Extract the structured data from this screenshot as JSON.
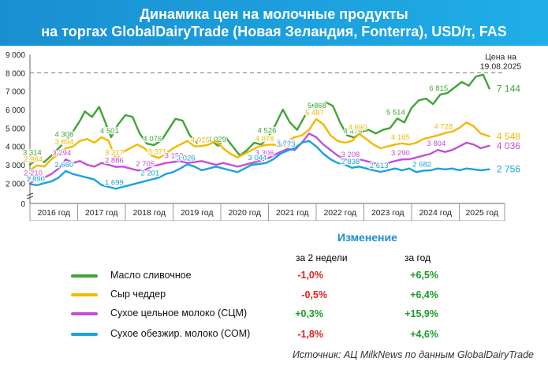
{
  "header": {
    "title_line1": "Динамика цен на молочные продукты",
    "title_line2": "на торгах GlobalDairyTrade (Новая Зеландия, Fonterra), USD/т, FAS"
  },
  "chart_data": {
    "type": "line",
    "ylim": [
      0,
      9000
    ],
    "yticks": [
      "0",
      "2 000",
      "3 000",
      "4 000",
      "5 000",
      "6 000",
      "7 000",
      "8 000",
      "9 000"
    ],
    "xlim": [
      2016.0,
      2025.95
    ],
    "categories": [
      "2016 год",
      "2017 год",
      "2018 год",
      "2019 год",
      "2020 год",
      "2021 год",
      "2022 год",
      "2023 год",
      "2024 год",
      "2025 год"
    ],
    "reference_line": {
      "value": 8000,
      "label_line1": "Цена на",
      "label_line2": "19.08.2025"
    },
    "colors": {
      "butter": "#3fa535",
      "cheddar": "#f5b800",
      "wmp": "#c44fd8",
      "smp": "#1aa3dc"
    },
    "series": [
      {
        "key": "butter",
        "x": [
          2016.0,
          2016.15,
          2016.3,
          2016.45,
          2016.6,
          2016.75,
          2016.9,
          2017.05,
          2017.15,
          2017.3,
          2017.45,
          2017.55,
          2017.7,
          2017.85,
          2018.0,
          2018.15,
          2018.3,
          2018.45,
          2018.6,
          2018.75,
          2018.9,
          2019.05,
          2019.2,
          2019.35,
          2019.5,
          2019.65,
          2019.8,
          2019.95,
          2020.1,
          2020.25,
          2020.4,
          2020.55,
          2020.7,
          2020.85,
          2021.0,
          2021.15,
          2021.3,
          2021.45,
          2021.6,
          2021.75,
          2021.9,
          2022.05,
          2022.2,
          2022.35,
          2022.5,
          2022.65,
          2022.8,
          2022.95,
          2023.1,
          2023.25,
          2023.4,
          2023.55,
          2023.7,
          2023.85,
          2024.0,
          2024.15,
          2024.3,
          2024.45,
          2024.6,
          2024.75,
          2024.9,
          2025.05,
          2025.2,
          2025.35,
          2025.5,
          2025.63
        ],
        "values": [
          3000,
          3314,
          3150,
          3500,
          3900,
          4308,
          4800,
          5400,
          5900,
          5600,
          6150,
          5500,
          4501,
          5200,
          5700,
          5600,
          4700,
          4150,
          4076,
          4300,
          4900,
          5500,
          5400,
          4600,
          4200,
          4500,
          4300,
          4029,
          4500,
          4000,
          3500,
          3800,
          4200,
          4100,
          4526,
          5200,
          6000,
          5300,
          4900,
          5600,
          6300,
          5868,
          6400,
          6200,
          5300,
          4600,
          4479,
          4800,
          4900,
          4700,
          4900,
          5000,
          5514,
          5300,
          6100,
          6500,
          6600,
          6300,
          6815,
          6900,
          7200,
          7500,
          7300,
          7800,
          7900,
          7144
        ],
        "labels": [
          [
            "3 314",
            2016.08,
            3314
          ],
          [
            "4 308",
            2016.75,
            4308
          ],
          [
            "4 501",
            2017.7,
            4501
          ],
          [
            "4 076",
            2018.6,
            4076
          ],
          [
            "4 029",
            2019.95,
            4029
          ],
          [
            "4 526",
            2021.0,
            4526
          ],
          [
            "5 868",
            2022.05,
            5868
          ],
          [
            "4 479",
            2022.8,
            4479
          ],
          [
            "5 514",
            2023.7,
            5514
          ],
          [
            "6 815",
            2024.6,
            6815
          ],
          [
            "7 144",
            2025.75,
            7144
          ]
        ]
      },
      {
        "key": "cheddar",
        "x": [
          2016.0,
          2016.15,
          2016.3,
          2016.45,
          2016.6,
          2016.75,
          2016.9,
          2017.05,
          2017.2,
          2017.35,
          2017.5,
          2017.65,
          2017.8,
          2017.95,
          2018.1,
          2018.25,
          2018.4,
          2018.55,
          2018.7,
          2018.85,
          2019.0,
          2019.15,
          2019.3,
          2019.45,
          2019.6,
          2019.75,
          2019.9,
          2020.05,
          2020.2,
          2020.35,
          2020.5,
          2020.65,
          2020.8,
          2020.95,
          2021.1,
          2021.25,
          2021.4,
          2021.55,
          2021.7,
          2021.85,
          2022.0,
          2022.15,
          2022.3,
          2022.45,
          2022.6,
          2022.75,
          2022.9,
          2023.05,
          2023.2,
          2023.35,
          2023.5,
          2023.65,
          2023.8,
          2023.95,
          2024.1,
          2024.25,
          2024.4,
          2024.55,
          2024.7,
          2024.85,
          2025.0,
          2025.15,
          2025.3,
          2025.45,
          2025.63
        ],
        "values": [
          2700,
          2964,
          2900,
          3300,
          3600,
          3894,
          4000,
          4300,
          4400,
          4200,
          4500,
          4300,
          3317,
          3700,
          3900,
          4100,
          3900,
          3500,
          3371,
          3600,
          3900,
          4100,
          4300,
          4000,
          4015,
          4100,
          4300,
          3900,
          3600,
          3400,
          3600,
          3800,
          4000,
          4078,
          4100,
          4000,
          4300,
          4500,
          4600,
          4900,
          5487,
          5200,
          4600,
          4300,
          4200,
          4300,
          4690,
          4400,
          4100,
          3900,
          4000,
          4100,
          4165,
          4100,
          4200,
          4400,
          4500,
          4600,
          4728,
          4800,
          5000,
          5300,
          5100,
          4700,
          4548
        ],
        "labels": [
          [
            "2 964",
            2016.1,
            2964
          ],
          [
            "3 894",
            2016.75,
            3894
          ],
          [
            "3 317",
            2017.8,
            3317
          ],
          [
            "3 371",
            2018.7,
            3371
          ],
          [
            "4 015",
            2019.6,
            4015
          ],
          [
            "4 078",
            2020.95,
            4078
          ],
          [
            "5 487",
            2022.0,
            5487
          ],
          [
            "4 690",
            2022.9,
            4690
          ],
          [
            "4 165",
            2023.8,
            4165
          ],
          [
            "4 728",
            2024.7,
            4728
          ],
          [
            "4 548",
            2025.75,
            4548
          ]
        ]
      },
      {
        "key": "wmp",
        "x": [
          2016.0,
          2016.15,
          2016.3,
          2016.45,
          2016.6,
          2016.75,
          2016.9,
          2017.05,
          2017.2,
          2017.35,
          2017.5,
          2017.65,
          2017.8,
          2017.95,
          2018.1,
          2018.25,
          2018.4,
          2018.55,
          2018.7,
          2018.85,
          2019.0,
          2019.15,
          2019.3,
          2019.45,
          2019.6,
          2019.75,
          2019.9,
          2020.05,
          2020.2,
          2020.35,
          2020.5,
          2020.65,
          2020.8,
          2020.95,
          2021.1,
          2021.25,
          2021.4,
          2021.55,
          2021.7,
          2021.85,
          2022.0,
          2022.15,
          2022.3,
          2022.45,
          2022.6,
          2022.75,
          2022.9,
          2023.05,
          2023.2,
          2023.35,
          2023.5,
          2023.65,
          2023.8,
          2023.95,
          2024.1,
          2024.25,
          2024.4,
          2024.55,
          2024.7,
          2024.85,
          2025.0,
          2025.15,
          2025.3,
          2025.45,
          2025.63
        ],
        "values": [
          2000,
          2210,
          2300,
          2500,
          2800,
          3294,
          3100,
          3200,
          3000,
          2900,
          3100,
          3000,
          2886,
          2900,
          2800,
          2700,
          2705,
          2900,
          3000,
          3100,
          3150,
          3200,
          3100,
          3150,
          3200,
          3100,
          3000,
          3100,
          3000,
          2900,
          3000,
          3100,
          3200,
          3306,
          3500,
          3700,
          3866,
          3800,
          4200,
          4700,
          4500,
          4100,
          3800,
          3500,
          3300,
          3208,
          3300,
          3200,
          3100,
          3000,
          3100,
          3200,
          3290,
          3300,
          3400,
          3500,
          3600,
          3804,
          3700,
          3800,
          4000,
          4200,
          4100,
          3900,
          4036
        ],
        "labels": [
          [
            "2 210",
            2016.1,
            2210
          ],
          [
            "3 294",
            2016.7,
            3294
          ],
          [
            "2 886",
            2017.8,
            2886
          ],
          [
            "2 705",
            2018.45,
            2705
          ],
          [
            "3 150",
            2019.05,
            3150
          ],
          [
            "3 306",
            2020.95,
            3306
          ],
          [
            "3 866",
            2021.4,
            3866
          ],
          [
            "3 208",
            2022.75,
            3208
          ],
          [
            "3 290",
            2023.8,
            3290
          ],
          [
            "3 804",
            2024.55,
            3804
          ],
          [
            "4 036",
            2025.75,
            4036
          ]
        ]
      },
      {
        "key": "smp",
        "x": [
          2016.0,
          2016.15,
          2016.3,
          2016.45,
          2016.6,
          2016.75,
          2016.9,
          2017.05,
          2017.2,
          2017.35,
          2017.5,
          2017.65,
          2017.8,
          2017.95,
          2018.1,
          2018.25,
          2018.4,
          2018.55,
          2018.7,
          2018.85,
          2019.0,
          2019.15,
          2019.3,
          2019.45,
          2019.6,
          2019.75,
          2019.9,
          2020.05,
          2020.2,
          2020.35,
          2020.5,
          2020.65,
          2020.8,
          2020.95,
          2021.1,
          2021.25,
          2021.4,
          2021.55,
          2021.7,
          2021.85,
          2022.0,
          2022.15,
          2022.3,
          2022.45,
          2022.6,
          2022.75,
          2022.9,
          2023.05,
          2023.2,
          2023.35,
          2023.5,
          2023.65,
          2023.8,
          2023.95,
          2024.1,
          2024.25,
          2024.4,
          2024.55,
          2024.7,
          2024.85,
          2025.0,
          2025.15,
          2025.3,
          2025.45,
          2025.63
        ],
        "values": [
          1950,
          1890,
          2000,
          2100,
          2300,
          2660,
          2500,
          2400,
          2300,
          2200,
          1900,
          1800,
          1699,
          1800,
          1900,
          2000,
          2100,
          2201,
          2300,
          2500,
          2600,
          2800,
          3026,
          2900,
          2700,
          2800,
          2900,
          2800,
          2700,
          2600,
          2800,
          3000,
          3044,
          3100,
          3300,
          3600,
          3773,
          3900,
          4200,
          4300,
          4000,
          3600,
          3300,
          3100,
          3000,
          2838,
          2900,
          2800,
          2700,
          2613,
          2700,
          2800,
          2700,
          2800,
          2600,
          2682,
          2700,
          2800,
          2750,
          2800,
          2700,
          2800,
          2750,
          2700,
          2756
        ],
        "labels": [
          [
            "1 890",
            2016.15,
            1890
          ],
          [
            "2 660",
            2016.75,
            2660
          ],
          [
            "1 699",
            2017.8,
            1699
          ],
          [
            "2 201",
            2018.55,
            2201
          ],
          [
            "3 026",
            2019.3,
            3026
          ],
          [
            "3 044",
            2020.8,
            3044
          ],
          [
            "3 773",
            2021.4,
            3773
          ],
          [
            "2 838",
            2022.75,
            2838
          ],
          [
            "2 613",
            2023.35,
            2613
          ],
          [
            "2 682",
            2024.25,
            2682
          ],
          [
            "2 756",
            2025.75,
            2756
          ]
        ]
      }
    ]
  },
  "changes": {
    "title": "Изменение",
    "col_2weeks": "за 2 недели",
    "col_year": "за год",
    "rows": [
      {
        "label": "Масло сливочное",
        "two_weeks": "-1,0%",
        "year": "+6,5%"
      },
      {
        "label": "Сыр чеддер",
        "two_weeks": "-0,5%",
        "year": "+6,4%"
      },
      {
        "label": "Сухое цельное молоко (СЦМ)",
        "two_weeks": "+0,3%",
        "year": "+15,9%"
      },
      {
        "label": "Сухое обезжир. молоко (СОМ)",
        "two_weeks": "-1,8%",
        "year": "+4,6%"
      }
    ]
  },
  "source": "Источник: АЦ MilkNews по данным GlobalDairyTrade"
}
